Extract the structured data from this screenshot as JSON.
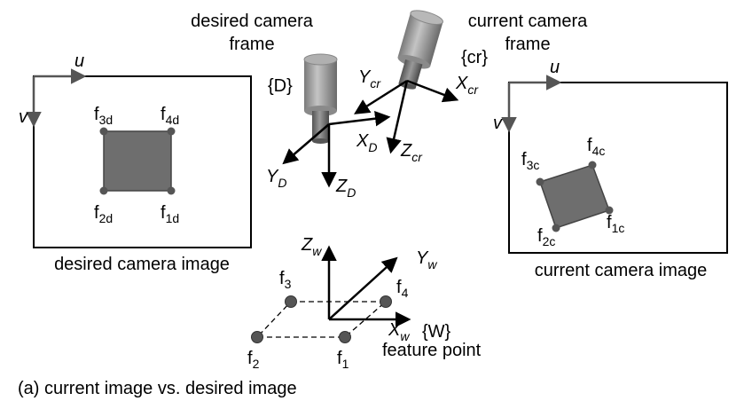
{
  "caption": "(a) current image vs. desired image",
  "desired_image": {
    "title": "desired camera image",
    "axis_u": "u",
    "axis_v": "v",
    "points": [
      {
        "base": "f",
        "sub": "3d"
      },
      {
        "base": "f",
        "sub": "4d"
      },
      {
        "base": "f",
        "sub": "2d"
      },
      {
        "base": "f",
        "sub": "1d"
      }
    ]
  },
  "current_image": {
    "title": "current camera image",
    "axis_u": "u",
    "axis_v": "v",
    "points": [
      {
        "base": "f",
        "sub": "3c"
      },
      {
        "base": "f",
        "sub": "4c"
      },
      {
        "base": "f",
        "sub": "2c"
      },
      {
        "base": "f",
        "sub": "1c"
      }
    ]
  },
  "desired_camera": {
    "title_line1": "desired camera",
    "title_line2": "frame",
    "frame_name": "{D}",
    "x_axis": {
      "base": "X",
      "sub": "D"
    },
    "y_axis": {
      "base": "Y",
      "sub": "D"
    },
    "z_axis": {
      "base": "Z",
      "sub": "D"
    }
  },
  "current_camera": {
    "title_line1": "current camera",
    "title_line2": "frame",
    "frame_name": "{cr}",
    "x_axis": {
      "base": "X",
      "sub": "cr"
    },
    "y_axis": {
      "base": "Y",
      "sub": "cr"
    },
    "z_axis": {
      "base": "Z",
      "sub": "cr"
    }
  },
  "world": {
    "frame_name": "{W}",
    "x_axis": {
      "base": "X",
      "sub": "w"
    },
    "y_axis": {
      "base": "Y",
      "sub": "w"
    },
    "z_axis": {
      "base": "Z",
      "sub": "w"
    },
    "feature_label": "feature point",
    "points": [
      {
        "base": "f",
        "sub": "3"
      },
      {
        "base": "f",
        "sub": "4"
      },
      {
        "base": "f",
        "sub": "2"
      },
      {
        "base": "f",
        "sub": "1"
      }
    ]
  },
  "colors": {
    "line": "#000000",
    "fill_square": "#6e6e6e",
    "feature_dot": "#555555",
    "camera_body": "#9a9a9a"
  }
}
